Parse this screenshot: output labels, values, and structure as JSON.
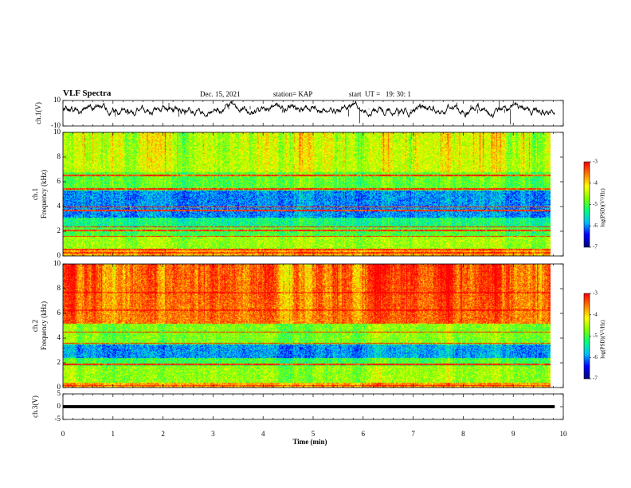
{
  "header": {
    "title": "VLF Spectra",
    "date": "Dec. 15, 2021",
    "station": "station= KAP",
    "start_ut": "start  UT =   19: 30: 1"
  },
  "chart_data": [
    {
      "type": "line",
      "panel": "ch.1 waveform",
      "ylabel": "ch.1(V)",
      "ylim": [
        -10,
        10
      ],
      "y_ticks": [
        "10",
        "-10"
      ],
      "xlim": [
        0,
        10
      ],
      "x_data_max": 9.83,
      "series_color": "#000000",
      "baseline": 3,
      "noise_amplitude": 3,
      "spike_range": [
        -10,
        10
      ]
    },
    {
      "type": "heatmap",
      "panel": "ch.1 spectrogram",
      "ylabel_top": "ch.1",
      "ylabel": "Frequency (kHz)",
      "ylim": [
        0,
        10
      ],
      "y_ticks": [
        "0",
        "2",
        "4",
        "6",
        "8",
        "10"
      ],
      "xlim": [
        0,
        10
      ],
      "x_data_max": 9.83,
      "value_range": [
        -7,
        -3
      ],
      "band_profile": [
        {
          "f": [
            0.0,
            0.5
          ],
          "level": -3.8
        },
        {
          "f": [
            0.5,
            1.6
          ],
          "level": -4.6
        },
        {
          "f": [
            1.6,
            2.4
          ],
          "level": -5.0
        },
        {
          "f": [
            2.4,
            3.1
          ],
          "level": -5.3
        },
        {
          "f": [
            3.1,
            5.3
          ],
          "level": -6.0
        },
        {
          "f": [
            5.3,
            6.8
          ],
          "level": -4.9
        },
        {
          "f": [
            6.8,
            10.0
          ],
          "level": -4.4
        }
      ],
      "lines_khz": [
        0.3,
        0.55,
        1.6,
        2.1,
        2.4,
        3.7,
        4.0,
        5.45,
        6.55
      ]
    },
    {
      "type": "heatmap",
      "panel": "ch.2 spectrogram",
      "ylabel_top": "ch.2",
      "ylabel": "Frequency (kHz)",
      "ylim": [
        0,
        10
      ],
      "y_ticks": [
        "0",
        "2",
        "4",
        "6",
        "8",
        "10"
      ],
      "xlim": [
        0,
        10
      ],
      "x_data_max": 9.83,
      "value_range": [
        -7,
        -3
      ],
      "band_profile": [
        {
          "f": [
            0.0,
            0.4
          ],
          "level": -3.8
        },
        {
          "f": [
            0.4,
            1.8
          ],
          "level": -4.7
        },
        {
          "f": [
            1.8,
            2.4
          ],
          "level": -5.1
        },
        {
          "f": [
            2.4,
            3.5
          ],
          "level": -6.0
        },
        {
          "f": [
            3.5,
            5.2
          ],
          "level": -4.8
        },
        {
          "f": [
            5.2,
            10.0
          ],
          "level": -3.6
        }
      ],
      "lines_khz": [
        0.2,
        1.9,
        3.6,
        4.5,
        6.3,
        7.7
      ]
    },
    {
      "type": "line",
      "panel": "ch.3 waveform",
      "ylabel": "ch.3(V)",
      "ylim": [
        -5,
        5
      ],
      "y_ticks": [
        "5",
        "0",
        "-5"
      ],
      "xlim": [
        0,
        10
      ],
      "x_data_max": 9.83,
      "band": [
        -0.6,
        0.6
      ],
      "series_color": "#000000",
      "xlabel": "Time  (min)",
      "x_ticks": [
        "0",
        "1",
        "2",
        "3",
        "4",
        "5",
        "6",
        "7",
        "8",
        "9",
        "10"
      ]
    }
  ],
  "colorbars": [
    {
      "label": "log(PSD)(V²/Hz)",
      "ticks": [
        "-3",
        "-4",
        "-5",
        "-6",
        "-7"
      ]
    },
    {
      "label": "log(PSD)(V²/Hz)",
      "ticks": [
        "-3",
        "-4",
        "-5",
        "-6",
        "-7"
      ]
    }
  ],
  "colormap": [
    "#00007f",
    "#0000ff",
    "#00bfff",
    "#00ff7f",
    "#7fff00",
    "#ffff00",
    "#ff7f00",
    "#ff0000"
  ]
}
